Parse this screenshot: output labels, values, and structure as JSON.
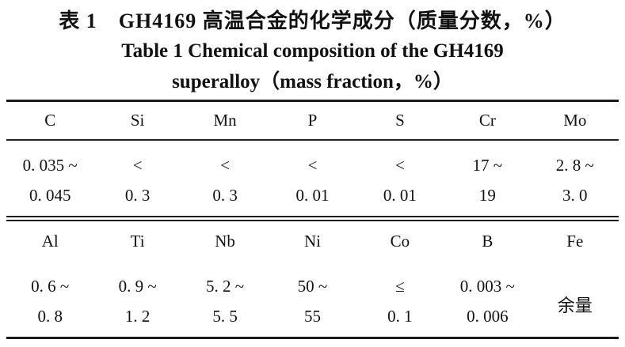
{
  "colors": {
    "background": "#ffffff",
    "text": "#111111",
    "rule": "#1a1a1a"
  },
  "title": {
    "zh": "表 1　GH4169 高温合金的化学成分（质量分数，%）",
    "en_line1": "Table 1 Chemical composition of the GH4169",
    "en_line2": "superalloy（mass fraction，%）"
  },
  "table": {
    "section1": {
      "headers": [
        "C",
        "Si",
        "Mn",
        "P",
        "S",
        "Cr",
        "Mo"
      ],
      "line1": [
        "0. 035 ~",
        "<",
        "<",
        "<",
        "<",
        "17 ~",
        "2. 8 ~"
      ],
      "line2": [
        "0. 045",
        "0. 3",
        "0. 3",
        "0. 01",
        "0. 01",
        "19",
        "3. 0"
      ]
    },
    "section2": {
      "headers": [
        "Al",
        "Ti",
        "Nb",
        "Ni",
        "Co",
        "B",
        "Fe"
      ],
      "line1": [
        "0. 6 ~",
        "0. 9 ~",
        "5. 2 ~",
        "50 ~",
        "≤",
        "0. 003 ~"
      ],
      "line2": [
        "0. 8",
        "1. 2",
        "5. 5",
        "55",
        "0. 1",
        "0. 006"
      ],
      "fe_span_value": "余量"
    }
  },
  "chart_data": {
    "type": "table",
    "title_zh": "表1 GH4169 高温合金的化学成分（质量分数，%）",
    "title_en": "Table 1 Chemical composition of the GH4169 superalloy (mass fraction, %)",
    "sections": [
      {
        "columns": [
          "C",
          "Si",
          "Mn",
          "P",
          "S",
          "Cr",
          "Mo"
        ],
        "values": [
          "0.035~0.045",
          "<0.3",
          "<0.3",
          "<0.01",
          "<0.01",
          "17~19",
          "2.8~3.0"
        ]
      },
      {
        "columns": [
          "Al",
          "Ti",
          "Nb",
          "Ni",
          "Co",
          "B",
          "Fe"
        ],
        "values": [
          "0.6~0.8",
          "0.9~1.2",
          "5.2~5.5",
          "50~55",
          "≤0.1",
          "0.003~0.006",
          "余量 (balance)"
        ]
      }
    ]
  }
}
